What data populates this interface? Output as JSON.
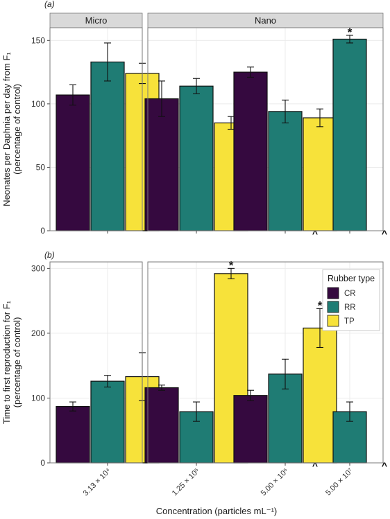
{
  "figure": {
    "xlabel": "Concentration (particles mL⁻¹)",
    "concentrations": [
      "3.13 × 10⁴",
      "1.25 × 10⁵",
      "5.00 × 10⁶",
      "5.00 × 10⁷"
    ],
    "facets": [
      "Micro",
      "Nano"
    ],
    "legend": {
      "title": "Rubber type",
      "placement": "top-right of panel (b)",
      "entries": [
        {
          "name": "CR",
          "color": "#35093f"
        },
        {
          "name": "RR",
          "color": "#1f7c74"
        },
        {
          "name": "TP",
          "color": "#f7e23a"
        }
      ]
    },
    "colors": {
      "panel_bg": "#ffffff",
      "strip_bg": "#d9d9d9",
      "grid": "#ebebeb",
      "frame": "#7a7a7a"
    }
  },
  "chart_data": [
    {
      "type": "bar",
      "panel_label": "(a)",
      "ylabel_lines": [
        "Neonates per Daphnia per day from F₁",
        "(percentage of control)"
      ],
      "ylim": [
        0,
        160
      ],
      "yticks": [
        "0",
        "50",
        "100",
        "150"
      ],
      "grid": true,
      "strip": true,
      "series_names": [
        "CR",
        "RR",
        "TP"
      ],
      "groups": [
        {
          "facet": "Micro",
          "concentration": "3.13 × 10⁴",
          "values": [
            107,
            133,
            124
          ],
          "errors": [
            8,
            15,
            8
          ],
          "markers": [
            "",
            "",
            ""
          ]
        },
        {
          "facet": "Nano",
          "concentration": "1.25 × 10⁵",
          "values": [
            104,
            114,
            85
          ],
          "errors": [
            14,
            6,
            5
          ],
          "markers": [
            "",
            "",
            ""
          ]
        },
        {
          "facet": "Nano",
          "concentration": "5.00 × 10⁶",
          "values": [
            125,
            94,
            89
          ],
          "errors": [
            4,
            9,
            7
          ],
          "markers": [
            "",
            "",
            ""
          ]
        },
        {
          "facet": "Nano",
          "concentration": "5.00 × 10⁷",
          "values": [
            null,
            151,
            null
          ],
          "errors": [
            null,
            3,
            null
          ],
          "markers": [
            "^",
            "*",
            "^"
          ]
        }
      ]
    },
    {
      "type": "bar",
      "panel_label": "(b)",
      "ylabel_lines": [
        "Time to first reproduction for F₁",
        "(percentage of control)"
      ],
      "ylim": [
        0,
        310
      ],
      "yticks": [
        "0",
        "100",
        "200",
        "300"
      ],
      "grid": true,
      "strip": false,
      "series_names": [
        "CR",
        "RR",
        "TP"
      ],
      "groups": [
        {
          "facet": "Micro",
          "concentration": "3.13 × 10⁴",
          "values": [
            87,
            126,
            133
          ],
          "errors": [
            7,
            9,
            37
          ],
          "markers": [
            "",
            "",
            ""
          ]
        },
        {
          "facet": "Nano",
          "concentration": "1.25 × 10⁵",
          "values": [
            116,
            79,
            292
          ],
          "errors": [
            4,
            15,
            8
          ],
          "markers": [
            "",
            "",
            "*"
          ]
        },
        {
          "facet": "Nano",
          "concentration": "5.00 × 10⁶",
          "values": [
            104,
            137,
            208
          ],
          "errors": [
            8,
            23,
            30
          ],
          "markers": [
            "",
            "",
            "*"
          ]
        },
        {
          "facet": "Nano",
          "concentration": "5.00 × 10⁷",
          "values": [
            null,
            79,
            null
          ],
          "errors": [
            null,
            15,
            null
          ],
          "markers": [
            "^",
            "",
            "^"
          ]
        }
      ]
    }
  ]
}
